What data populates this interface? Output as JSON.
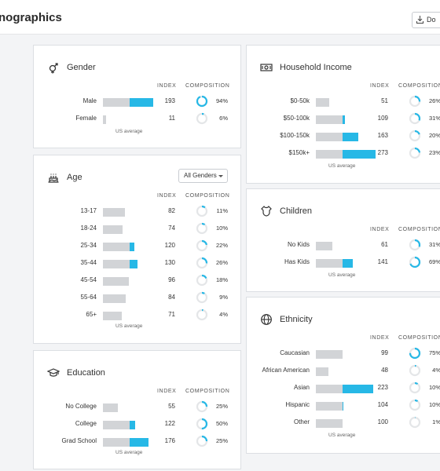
{
  "page": {
    "title": "nographics",
    "download_label": "Do"
  },
  "headers": {
    "index": "INDEX",
    "composition": "COMPOSITION"
  },
  "us_average": "US average",
  "colors": {
    "accent": "#27b8e6",
    "bar": "#d2d4d7",
    "ring": "#e4e6e8"
  },
  "gender": {
    "title": "Gender",
    "rows": [
      {
        "label": "Male",
        "index": "193",
        "composition": "94%",
        "share": 0.94
      },
      {
        "label": "Female",
        "index": "11",
        "composition": "6%",
        "share": 0.06
      }
    ]
  },
  "age": {
    "title": "Age",
    "filter": "All Genders",
    "rows": [
      {
        "label": "13-17",
        "index": "82",
        "composition": "11%",
        "share": 0.11
      },
      {
        "label": "18-24",
        "index": "74",
        "composition": "10%",
        "share": 0.1
      },
      {
        "label": "25-34",
        "index": "120",
        "composition": "22%",
        "share": 0.22
      },
      {
        "label": "35-44",
        "index": "130",
        "composition": "26%",
        "share": 0.26
      },
      {
        "label": "45-54",
        "index": "96",
        "composition": "18%",
        "share": 0.18
      },
      {
        "label": "55-64",
        "index": "84",
        "composition": "9%",
        "share": 0.09
      },
      {
        "label": "65+",
        "index": "71",
        "composition": "4%",
        "share": 0.04
      }
    ]
  },
  "education": {
    "title": "Education",
    "rows": [
      {
        "label": "No College",
        "index": "55",
        "composition": "25%",
        "share": 0.25
      },
      {
        "label": "College",
        "index": "122",
        "composition": "50%",
        "share": 0.5
      },
      {
        "label": "Grad School",
        "index": "176",
        "composition": "25%",
        "share": 0.25
      }
    ]
  },
  "income": {
    "title": "Household Income",
    "rows": [
      {
        "label": "$0-50k",
        "index": "51",
        "composition": "26%",
        "share": 0.26
      },
      {
        "label": "$50-100k",
        "index": "109",
        "composition": "31%",
        "share": 0.31
      },
      {
        "label": "$100-150k",
        "index": "163",
        "composition": "20%",
        "share": 0.2
      },
      {
        "label": "$150k+",
        "index": "273",
        "composition": "23%",
        "share": 0.23
      }
    ]
  },
  "children": {
    "title": "Children",
    "rows": [
      {
        "label": "No Kids",
        "index": "61",
        "composition": "31%",
        "share": 0.31
      },
      {
        "label": "Has Kids",
        "index": "141",
        "composition": "69%",
        "share": 0.69
      }
    ]
  },
  "ethnicity": {
    "title": "Ethnicity",
    "rows": [
      {
        "label": "Caucasian",
        "index": "99",
        "composition": "75%",
        "share": 0.75
      },
      {
        "label": "African American",
        "index": "48",
        "composition": "4%",
        "share": 0.04
      },
      {
        "label": "Asian",
        "index": "223",
        "composition": "10%",
        "share": 0.1
      },
      {
        "label": "Hispanic",
        "index": "104",
        "composition": "10%",
        "share": 0.1
      },
      {
        "label": "Other",
        "index": "100",
        "composition": "1%",
        "share": 0.01
      }
    ]
  }
}
